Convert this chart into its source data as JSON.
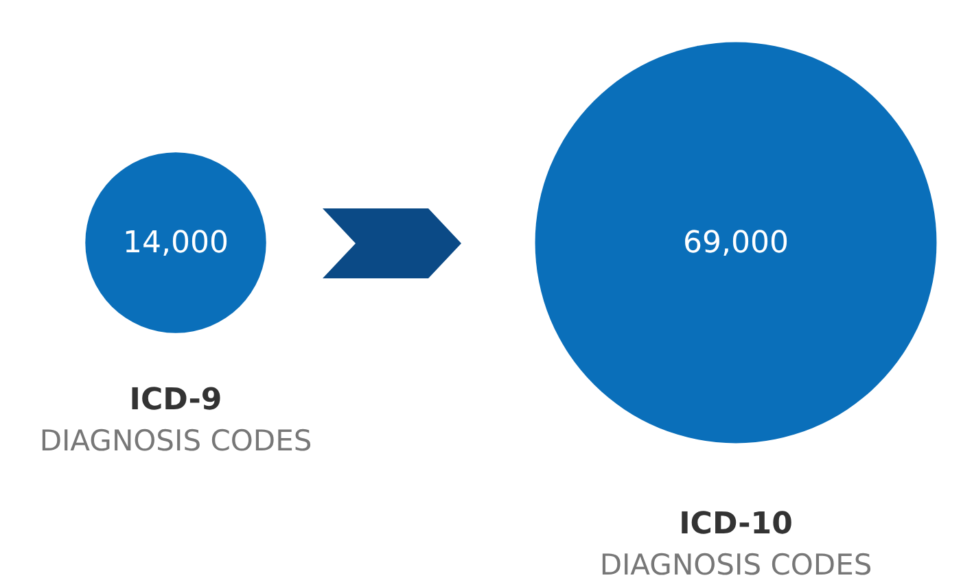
{
  "chart_data": {
    "type": "other",
    "categories": [
      "ICD-9",
      "ICD-10"
    ],
    "values": [
      14000,
      69000
    ],
    "color": "#0a6fba",
    "value_labels": [
      "14,000",
      "69,000"
    ],
    "annotations": [
      {
        "text": "DIAGNOSIS CODES",
        "x": "ICD-9"
      },
      {
        "text": "DIAGNOSIS CODES",
        "x": "ICD-10"
      }
    ]
  }
}
